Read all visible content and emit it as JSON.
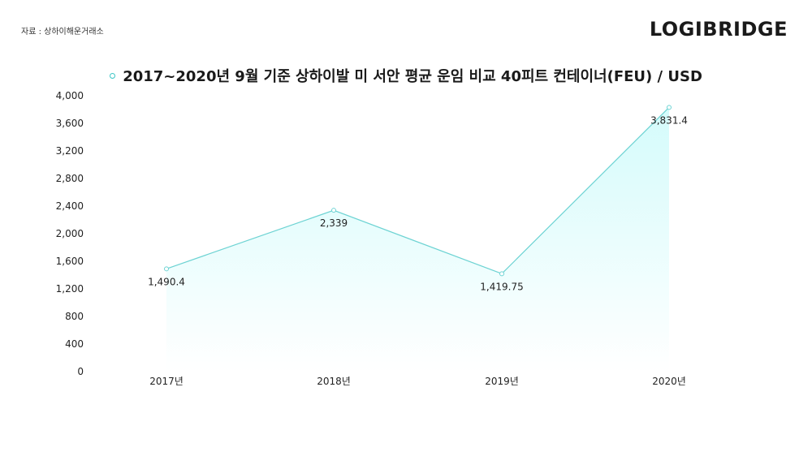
{
  "source": "자료 : 상하이해운거래소",
  "logo": "LOGIBRIDGE",
  "colors": {
    "line": "#6dd3d3",
    "area_top": "#d4fbfb",
    "area_bottom": "#ffffff"
  },
  "chart_data": {
    "type": "area",
    "title": "2017~2020년 9월 기준 상하이발 미 서안 평균 운임 비교 40피트 컨테이너(FEU) / USD",
    "categories": [
      "2017년",
      "2018년",
      "2019년",
      "2020년"
    ],
    "values": [
      1490.4,
      2339,
      1419.75,
      3831.4
    ],
    "value_labels": [
      "1,490.4",
      "2,339",
      "1,419.75",
      "3,831.4"
    ],
    "yticks": [
      "0",
      "400",
      "800",
      "1,200",
      "1,600",
      "2,000",
      "2,400",
      "2,800",
      "3,200",
      "3,600",
      "4,000"
    ],
    "ylim": [
      0,
      4000
    ],
    "xlabel": "",
    "ylabel": "",
    "grid": false,
    "legend": "none"
  }
}
